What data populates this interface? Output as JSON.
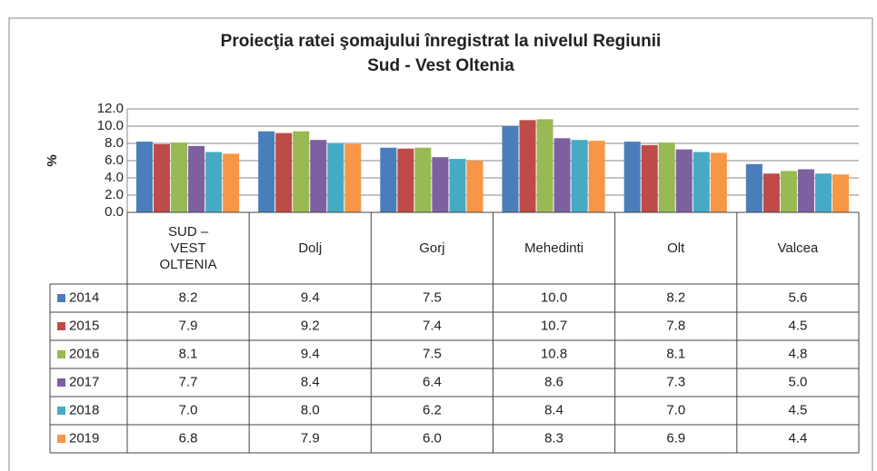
{
  "chart_data": {
    "type": "bar",
    "title": "Proiecţia ratei şomajului înregistrat la nivelul Regiunii",
    "subtitle": "Sud - Vest Oltenia",
    "y_label": "%",
    "categories": [
      "SUD – VEST OLTENIA",
      "Dolj",
      "Gorj",
      "Mehedinti",
      "Olt",
      "Valcea"
    ],
    "series": [
      {
        "name": "2014",
        "color": "#4a7ebb",
        "values": [
          8.2,
          9.4,
          7.5,
          10.0,
          8.2,
          5.6
        ],
        "value_labels": [
          "8.2",
          "9.4",
          "7.5",
          "10.0",
          "8.2",
          "5.6"
        ]
      },
      {
        "name": "2015",
        "color": "#be4b48",
        "values": [
          7.9,
          9.2,
          7.4,
          10.7,
          7.8,
          4.5
        ],
        "value_labels": [
          "7.9",
          "9.2",
          "7.4",
          "10.7",
          "7.8",
          "4.5"
        ]
      },
      {
        "name": "2016",
        "color": "#98b954",
        "values": [
          8.1,
          9.4,
          7.5,
          10.8,
          8.1,
          4.8
        ],
        "value_labels": [
          "8.1",
          "9.4",
          "7.5",
          "10.8",
          "8.1",
          "4.8"
        ]
      },
      {
        "name": "2017",
        "color": "#7d60a0",
        "values": [
          7.7,
          8.4,
          6.4,
          8.6,
          7.3,
          5.0
        ],
        "value_labels": [
          "7.7",
          "8.4",
          "6.4",
          "8.6",
          "7.3",
          "5.0"
        ]
      },
      {
        "name": "2018",
        "color": "#46aac5",
        "values": [
          7.0,
          8.0,
          6.2,
          8.4,
          7.0,
          4.5
        ],
        "value_labels": [
          "7.0",
          "8.0",
          "6.2",
          "8.4",
          "7.0",
          "4.5"
        ]
      },
      {
        "name": "2019",
        "color": "#f79646",
        "values": [
          6.8,
          7.9,
          6.0,
          8.3,
          6.9,
          4.4
        ],
        "value_labels": [
          "6.8",
          "7.9",
          "6.0",
          "8.3",
          "6.9",
          "4.4"
        ]
      }
    ],
    "ylim": [
      0,
      12
    ],
    "yticks": [
      {
        "value": 0,
        "label": "0.0"
      },
      {
        "value": 2,
        "label": "2.0"
      },
      {
        "value": 4,
        "label": "4.0"
      },
      {
        "value": 6,
        "label": "6.0"
      },
      {
        "value": 8,
        "label": "8.0"
      },
      {
        "value": 10,
        "label": "10.0"
      },
      {
        "value": 12,
        "label": "12.0"
      }
    ],
    "grid": true
  }
}
